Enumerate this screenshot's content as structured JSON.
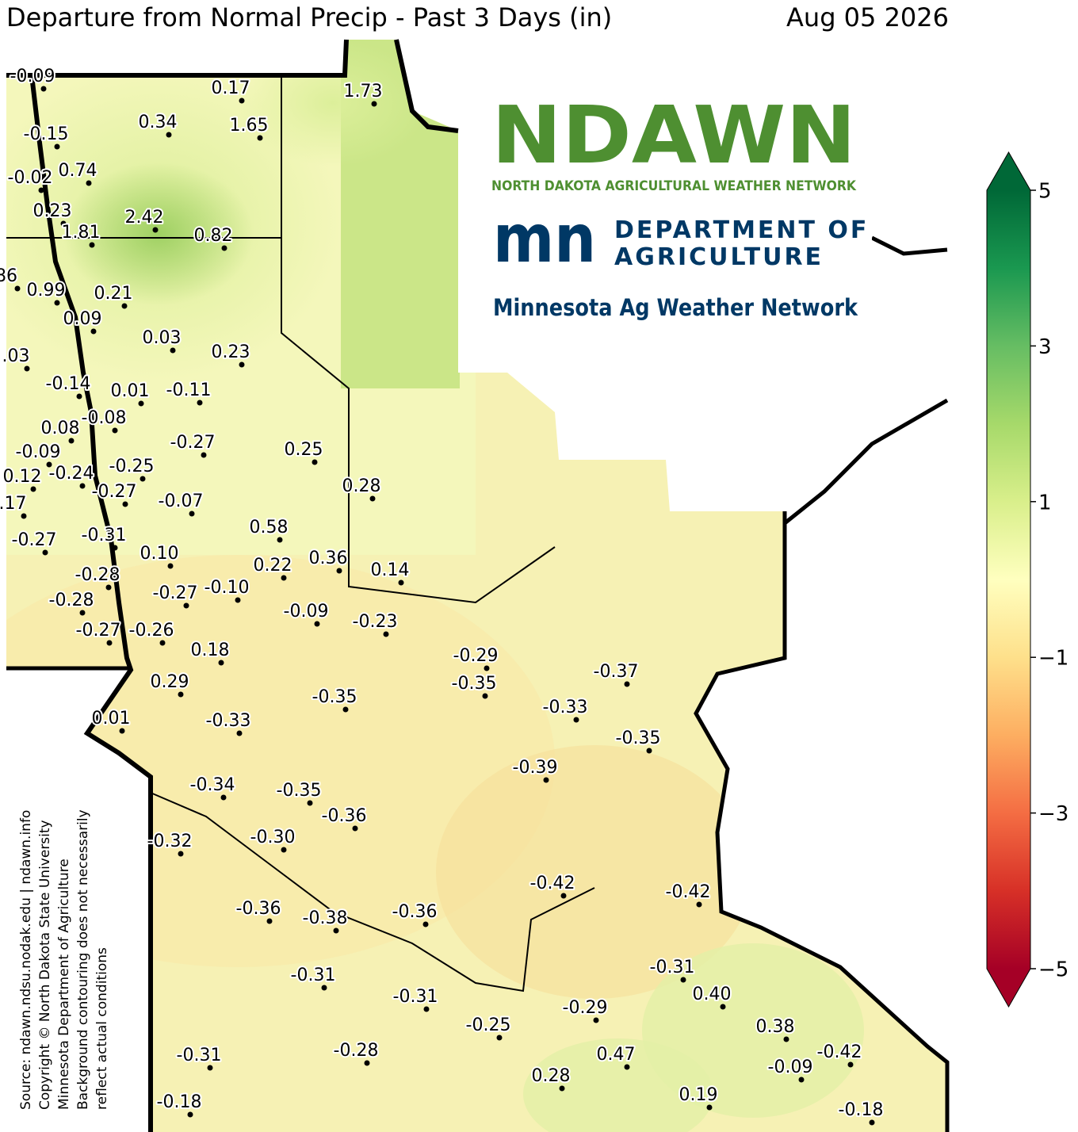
{
  "header": {
    "title": "Departure from Normal Precip - Past 3 Days (in)",
    "date": "Aug 05 2026"
  },
  "logos": {
    "ndawn": "NDAWN",
    "ndawn_full": "NORTH DAKOTA AGRICULTURAL WEATHER NETWORK",
    "mn_mark": "mn",
    "mda": [
      "DEPARTMENT OF",
      "AGRICULTURE"
    ],
    "network": "Minnesota Ag Weather Network"
  },
  "stations": [
    "-0.09",
    "0.17",
    "1.73",
    "0.34",
    "1.65",
    "-0.15",
    "-0.02",
    "0.74",
    "0.23",
    "2.42",
    "1.81",
    "0.82",
    "86",
    "0.99",
    "0.21",
    "0.09",
    "0.03",
    "0.23",
    ".03",
    "-0.14",
    "0.01",
    "-0.11",
    "-0.08",
    "0.08",
    "-0.27",
    "0.25",
    "-0.09",
    "-0.24",
    "-0.25",
    "0.12",
    "-0.27",
    ".17",
    "-0.07",
    "0.28",
    "0.58",
    "-0.27",
    "-0.31",
    "0.10",
    "0.36",
    "0.22",
    "0.14",
    "-0.28",
    "-0.27",
    "-0.10",
    "-0.28",
    "-0.09",
    "-0.23",
    "-0.27",
    "-0.26",
    "0.18",
    "-0.29",
    "-0.37",
    "0.29",
    "-0.35",
    "-0.35",
    "-0.33",
    "0.01",
    "-0.33",
    "-0.35",
    "-0.39",
    "-0.34",
    "-0.35",
    "-0.36",
    "-0.32",
    "-0.30",
    "-0.42",
    "-0.42",
    "-0.36",
    "-0.36",
    "-0.38",
    "-0.31",
    "-0.31",
    "0.40",
    "-0.31",
    "-0.29",
    "-0.25",
    "0.38",
    "-0.42",
    "-0.31",
    "-0.28",
    "0.47",
    "-0.09",
    "0.28",
    "0.19",
    "-0.18",
    "-0.18"
  ],
  "colorbar": {
    "range": [
      -5,
      5
    ],
    "ticks": [
      5,
      3,
      1,
      {
        "value": -1,
        "label": "−1"
      },
      {
        "value": -3,
        "label": "−3"
      },
      {
        "value": -5,
        "label": "−5"
      }
    ],
    "colors": [
      "#a50026",
      "#d73027",
      "#f46d43",
      "#fdae61",
      "#fee08b",
      "#ffffbf",
      "#d9ef8b",
      "#a6d96a",
      "#66bd63",
      "#1a9850",
      "#006837"
    ]
  },
  "source": [
    "Source: ndawn.ndsu.nodak.edu | ndawn.info",
    "Copyright © North Dakota State University",
    "Minnesota Department of Agriculture",
    "Background contouring does not necessarily",
    "reflect actual conditions"
  ]
}
